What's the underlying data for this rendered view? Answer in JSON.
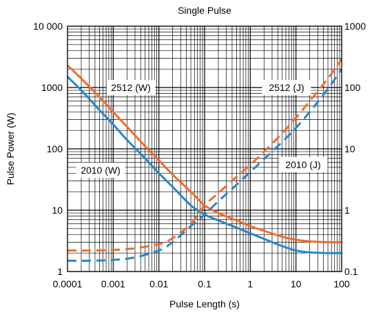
{
  "chart_data": {
    "type": "line",
    "title": "Single Pulse",
    "xlabel": "Pulse Length (s)",
    "ylabel": "Pulse Power (W)",
    "x_scale": "log",
    "y_scale": "log",
    "xlim": [
      0.0001,
      100
    ],
    "ylim": [
      1,
      10000
    ],
    "y2lim": [
      0.1,
      1000
    ],
    "grid": true,
    "x_ticks": [
      "0.0001",
      "0.001",
      "0.01",
      "0.1",
      "1",
      "10",
      "100"
    ],
    "y_ticks": [
      "1",
      "10",
      "100",
      "1000",
      "10 000"
    ],
    "y2_ticks": [
      "0.1",
      "1",
      "10",
      "100",
      "1000"
    ],
    "annotations": [
      "2512 (W)",
      "2512 (J)",
      "2010 (W)",
      "2010 (J)"
    ],
    "series": [
      {
        "name": "2512 (W)",
        "color": "#f26b2a",
        "style": "solid",
        "axis": "left",
        "x": [
          0.0001,
          0.0002,
          0.0005,
          0.001,
          0.002,
          0.005,
          0.01,
          0.02,
          0.05,
          0.1,
          0.2,
          0.5,
          1,
          2,
          5,
          10,
          20,
          50,
          100
        ],
        "y": [
          2300,
          1400,
          700,
          400,
          230,
          110,
          65,
          38,
          20,
          12,
          9,
          6.8,
          5.5,
          4.6,
          3.7,
          3.3,
          3.1,
          3.0,
          3.0
        ]
      },
      {
        "name": "2010 (W)",
        "color": "#2a84c6",
        "style": "solid",
        "axis": "left",
        "x": [
          0.0001,
          0.0002,
          0.0005,
          0.001,
          0.002,
          0.005,
          0.01,
          0.02,
          0.05,
          0.1,
          0.2,
          0.5,
          1,
          2,
          5,
          10,
          20,
          50,
          100
        ],
        "y": [
          1500,
          900,
          430,
          250,
          140,
          70,
          40,
          24,
          12,
          8.5,
          6.8,
          5.2,
          4.2,
          3.4,
          2.6,
          2.2,
          2.05,
          2.0,
          2.0
        ]
      },
      {
        "name": "2512 (J)",
        "color": "#f26b2a",
        "style": "dashed",
        "axis": "right",
        "x": [
          0.0001,
          0.0003,
          0.001,
          0.003,
          0.01,
          0.02,
          0.05,
          0.1,
          0.2,
          0.5,
          1,
          2,
          5,
          10,
          20,
          50,
          100
        ],
        "y": [
          0.22,
          0.22,
          0.225,
          0.24,
          0.28,
          0.35,
          0.6,
          1.2,
          1.9,
          3.5,
          5.5,
          9.0,
          18,
          32,
          60,
          140,
          290
        ]
      },
      {
        "name": "2010 (J)",
        "color": "#2a84c6",
        "style": "dashed",
        "axis": "right",
        "x": [
          0.0001,
          0.0003,
          0.001,
          0.003,
          0.01,
          0.02,
          0.05,
          0.1,
          0.2,
          0.5,
          1,
          2,
          5,
          10,
          20,
          50,
          100
        ],
        "y": [
          0.15,
          0.15,
          0.155,
          0.17,
          0.22,
          0.3,
          0.55,
          0.85,
          1.4,
          2.6,
          4.2,
          6.8,
          13,
          22,
          40,
          95,
          200
        ]
      }
    ]
  }
}
